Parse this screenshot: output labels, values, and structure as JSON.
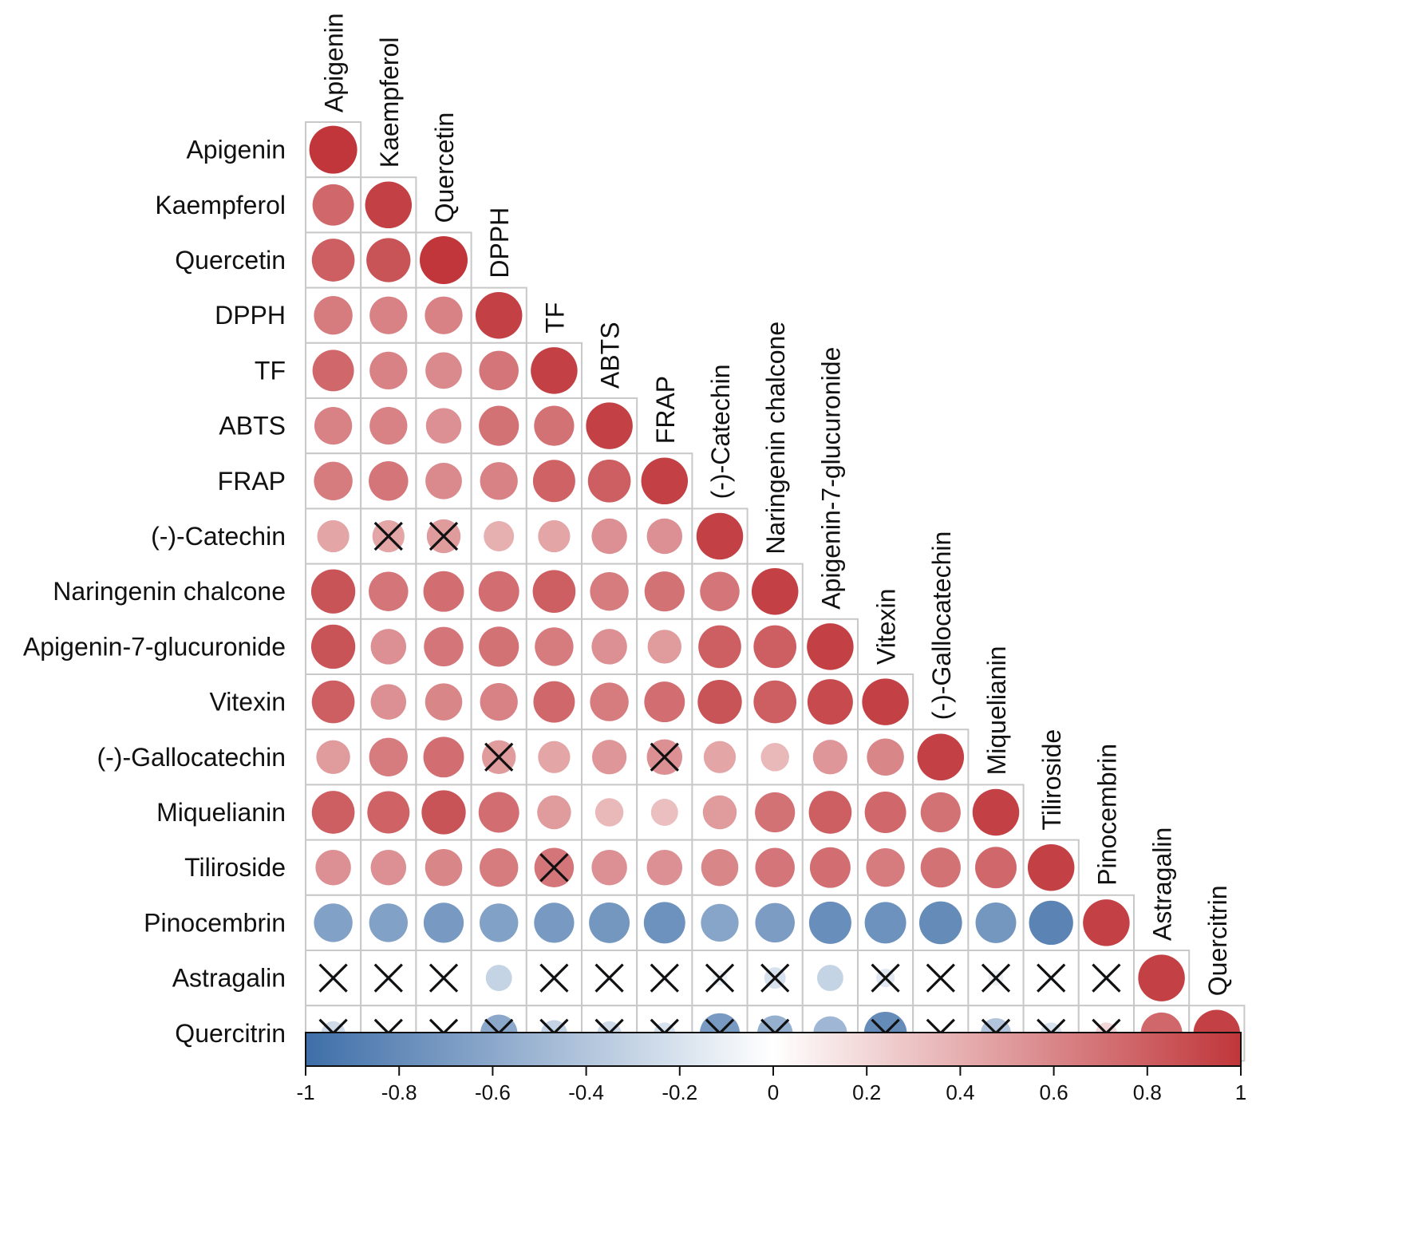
{
  "chart_data": {
    "type": "heatmap",
    "subtype": "correlation-matrix-lower-triangle",
    "title": "",
    "variables": [
      "Apigenin",
      "Kaempferol",
      "Quercetin",
      "DPPH",
      "TF",
      "ABTS",
      "FRAP",
      "(-)-Catechin",
      "Naringenin chalcone",
      "Apigenin-7-glucuronide",
      "Vitexin",
      "(-)-Gallocatechin",
      "Miquelianin",
      "Tiliroside",
      "Pinocembrin",
      "Astragalin",
      "Quercitrin"
    ],
    "matrix": [
      [
        1.0
      ],
      [
        0.75,
        0.95
      ],
      [
        0.8,
        0.85,
        1.0
      ],
      [
        0.65,
        0.62,
        0.62,
        0.95
      ],
      [
        0.75,
        0.62,
        0.58,
        0.68,
        0.95
      ],
      [
        0.62,
        0.62,
        0.55,
        0.7,
        0.7,
        0.95
      ],
      [
        0.65,
        0.68,
        0.58,
        0.62,
        0.78,
        0.8,
        0.95
      ],
      [
        0.45,
        0.45,
        0.5,
        0.4,
        0.45,
        0.55,
        0.55,
        0.95
      ],
      [
        0.85,
        0.68,
        0.72,
        0.72,
        0.8,
        0.65,
        0.7,
        0.68,
        0.95
      ],
      [
        0.85,
        0.55,
        0.68,
        0.7,
        0.65,
        0.55,
        0.5,
        0.8,
        0.8,
        0.95
      ],
      [
        0.8,
        0.55,
        0.6,
        0.62,
        0.75,
        0.65,
        0.72,
        0.85,
        0.8,
        0.9,
        0.95
      ],
      [
        0.5,
        0.65,
        0.72,
        0.5,
        0.45,
        0.52,
        0.55,
        0.45,
        0.35,
        0.52,
        0.6,
        0.95
      ],
      [
        0.8,
        0.78,
        0.85,
        0.72,
        0.5,
        0.35,
        0.32,
        0.5,
        0.7,
        0.8,
        0.75,
        0.7,
        0.95
      ],
      [
        0.55,
        0.55,
        0.6,
        0.65,
        0.68,
        0.55,
        0.55,
        0.6,
        0.68,
        0.72,
        0.65,
        0.7,
        0.75,
        0.95
      ],
      [
        -0.65,
        -0.65,
        -0.7,
        -0.65,
        -0.7,
        -0.72,
        -0.75,
        -0.62,
        -0.68,
        -0.78,
        -0.75,
        -0.8,
        -0.72,
        -0.85,
        0.95
      ],
      [
        -0.05,
        -0.05,
        -0.05,
        -0.3,
        -0.05,
        -0.05,
        -0.05,
        -0.1,
        -0.2,
        -0.3,
        -0.15,
        0.0,
        -0.1,
        -0.05,
        -0.05,
        0.95
      ],
      [
        -0.25,
        -0.05,
        -0.05,
        -0.6,
        -0.3,
        -0.25,
        -0.2,
        -0.7,
        -0.55,
        -0.5,
        -0.8,
        0.0,
        -0.4,
        -0.2,
        0.2,
        0.75,
        0.95
      ]
    ],
    "not_significant": [
      [
        7,
        1
      ],
      [
        7,
        2
      ],
      [
        11,
        3
      ],
      [
        11,
        6
      ],
      [
        13,
        4
      ],
      [
        15,
        0
      ],
      [
        15,
        1
      ],
      [
        15,
        2
      ],
      [
        15,
        4
      ],
      [
        15,
        5
      ],
      [
        15,
        6
      ],
      [
        15,
        7
      ],
      [
        15,
        8
      ],
      [
        15,
        10
      ],
      [
        15,
        11
      ],
      [
        15,
        12
      ],
      [
        15,
        13
      ],
      [
        15,
        14
      ],
      [
        16,
        0
      ],
      [
        16,
        1
      ],
      [
        16,
        2
      ],
      [
        16,
        3
      ],
      [
        16,
        4
      ],
      [
        16,
        5
      ],
      [
        16,
        6
      ],
      [
        16,
        7
      ],
      [
        16,
        8
      ],
      [
        16,
        10
      ],
      [
        16,
        11
      ],
      [
        16,
        12
      ],
      [
        16,
        13
      ],
      [
        16,
        14
      ]
    ],
    "colorbar": {
      "min": -1,
      "max": 1,
      "ticks": [
        "-1",
        "-0.8",
        "-0.6",
        "-0.4",
        "-0.2",
        "0",
        "0.2",
        "0.4",
        "0.6",
        "0.8",
        "1"
      ],
      "colors": {
        "negative": "#3e6ea8",
        "zero": "#ffffff",
        "positive": "#c0363a"
      }
    },
    "legend_position": "bottom"
  }
}
